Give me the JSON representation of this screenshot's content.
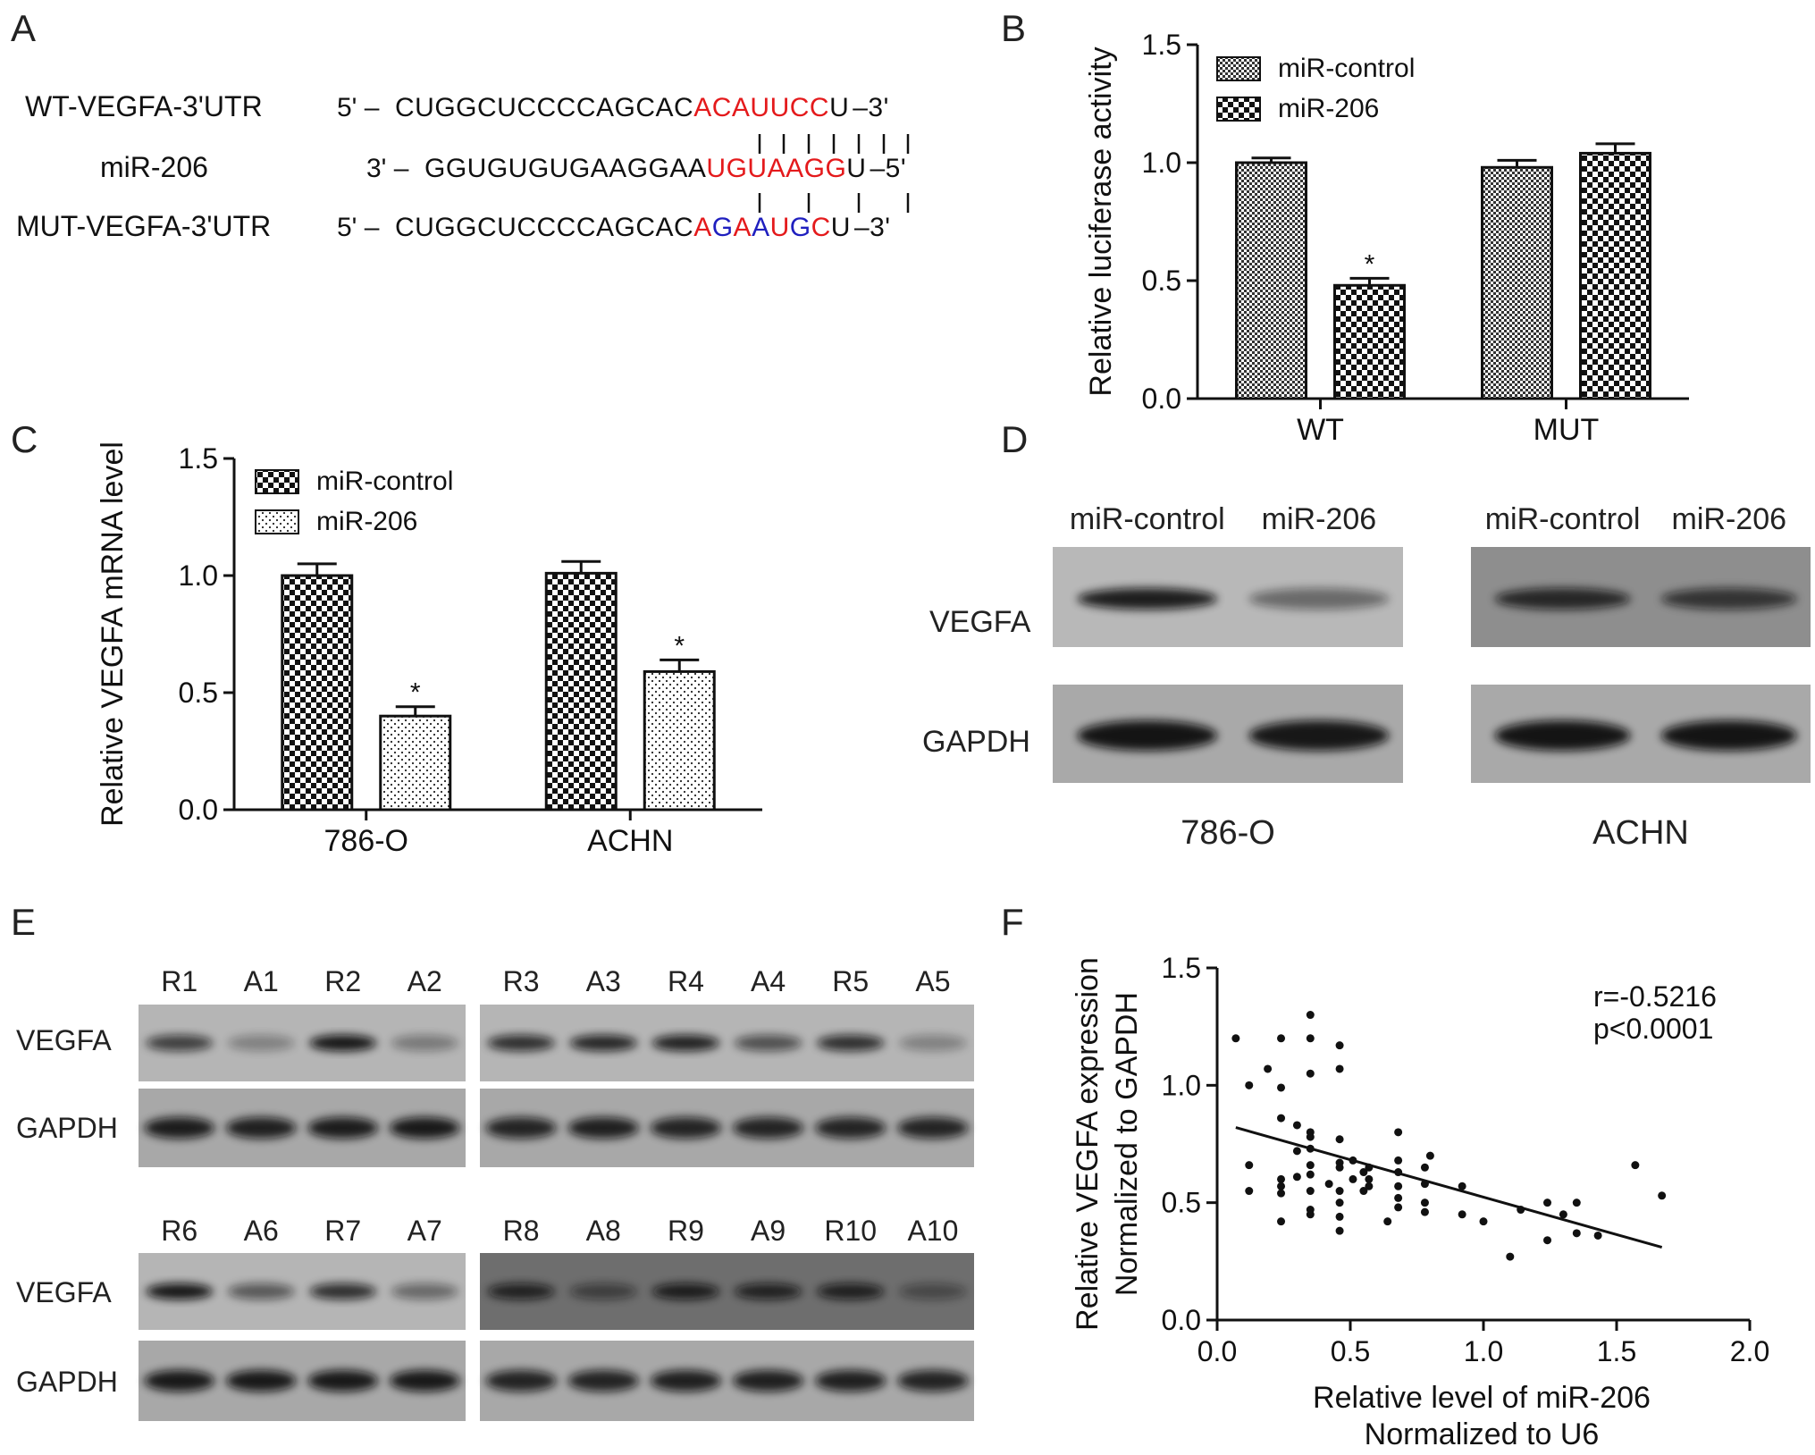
{
  "figure": {
    "panel_letters": {
      "a": "A",
      "b": "B",
      "c": "C",
      "d": "D",
      "e": "E",
      "f": "F"
    }
  },
  "panel_a": {
    "rows": [
      {
        "label": "WT-VEGFA-3'UTR",
        "prefix": "5' –",
        "seq": "CUGGCUCCCCAGCAC",
        "site": "ACAUUCC",
        "site_colors": [
          "red",
          "red",
          "red",
          "red",
          "red",
          "red",
          "red"
        ],
        "tail": "U",
        "suffix": "–3'"
      },
      {
        "label": "miR-206",
        "prefix": "3' –",
        "seq": "GGUGUGUGAAGGAA",
        "site": "UGUAAGG",
        "site_colors": [
          "red",
          "red",
          "red",
          "red",
          "red",
          "red",
          "red"
        ],
        "tail": "U",
        "suffix": "–5'"
      },
      {
        "label": "MUT-VEGFA-3'UTR",
        "prefix": "5' –",
        "seq": "CUGGCUCCCCAGCAC",
        "site": "AGAAUGC",
        "site_colors": [
          "red",
          "blue",
          "red",
          "blue",
          "red",
          "blue",
          "red"
        ],
        "tail": "U",
        "suffix": "–3'"
      }
    ],
    "colors": {
      "match": "#e41a1c",
      "mutation": "#1f1fbf"
    }
  },
  "chart_data": [
    {
      "panel": "B",
      "type": "bar",
      "ylabel": "Relative luciferase activity",
      "ylim": [
        0,
        1.5
      ],
      "yticks": [
        "0.0",
        "0.5",
        "1.0",
        "1.5"
      ],
      "categories": [
        "WT",
        "MUT"
      ],
      "series": [
        {
          "name": "miR-control",
          "values": [
            1.0,
            0.98
          ],
          "errors": [
            0.02,
            0.03
          ],
          "pattern": "fine-check"
        },
        {
          "name": "miR-206",
          "values": [
            0.48,
            1.04
          ],
          "errors": [
            0.03,
            0.04
          ],
          "pattern": "checker"
        }
      ],
      "significance": [
        {
          "category": 0,
          "series": 1,
          "label": "*"
        }
      ],
      "legend": "top-left"
    },
    {
      "panel": "C",
      "type": "bar",
      "ylabel": "Relative VEGFA mRNA level",
      "ylim": [
        0,
        1.5
      ],
      "yticks": [
        "0.0",
        "0.5",
        "1.0",
        "1.5"
      ],
      "categories": [
        "786-O",
        "ACHN"
      ],
      "series": [
        {
          "name": "miR-control",
          "values": [
            1.0,
            1.01
          ],
          "errors": [
            0.05,
            0.05
          ],
          "pattern": "checker"
        },
        {
          "name": "miR-206",
          "values": [
            0.4,
            0.59
          ],
          "errors": [
            0.04,
            0.05
          ],
          "pattern": "dots"
        }
      ],
      "significance": [
        {
          "category": 0,
          "series": 1,
          "label": "*"
        },
        {
          "category": 1,
          "series": 1,
          "label": "*"
        }
      ],
      "legend": "top-left"
    },
    {
      "panel": "F",
      "type": "scatter",
      "xlabel": [
        "Relative level of miR-206",
        "Normalized to U6"
      ],
      "ylabel": [
        "Relative VEGFA expression",
        "Normalized to GAPDH"
      ],
      "xlim": [
        0,
        2.0
      ],
      "ylim": [
        0,
        1.5
      ],
      "xticks": [
        "0.0",
        "0.5",
        "1.0",
        "1.5",
        "2.0"
      ],
      "yticks": [
        "0.0",
        "0.5",
        "1.0",
        "1.5"
      ],
      "annotation": [
        "r=-0.5216",
        "p<0.0001"
      ],
      "fit": {
        "x": [
          0.07,
          1.67
        ],
        "y": [
          0.82,
          0.31
        ]
      },
      "points": [
        [
          0.07,
          1.2
        ],
        [
          0.12,
          1.0
        ],
        [
          0.12,
          0.66
        ],
        [
          0.12,
          0.55
        ],
        [
          0.19,
          1.07
        ],
        [
          0.24,
          1.2
        ],
        [
          0.24,
          0.99
        ],
        [
          0.24,
          0.86
        ],
        [
          0.24,
          0.6
        ],
        [
          0.24,
          0.57
        ],
        [
          0.24,
          0.54
        ],
        [
          0.24,
          0.42
        ],
        [
          0.3,
          0.83
        ],
        [
          0.3,
          0.72
        ],
        [
          0.3,
          0.61
        ],
        [
          0.35,
          1.3
        ],
        [
          0.35,
          1.2
        ],
        [
          0.35,
          1.05
        ],
        [
          0.35,
          0.8
        ],
        [
          0.35,
          0.78
        ],
        [
          0.35,
          0.73
        ],
        [
          0.35,
          0.66
        ],
        [
          0.35,
          0.62
        ],
        [
          0.35,
          0.55
        ],
        [
          0.35,
          0.47
        ],
        [
          0.35,
          0.45
        ],
        [
          0.42,
          0.58
        ],
        [
          0.46,
          1.17
        ],
        [
          0.46,
          1.07
        ],
        [
          0.46,
          0.77
        ],
        [
          0.46,
          0.67
        ],
        [
          0.46,
          0.65
        ],
        [
          0.46,
          0.55
        ],
        [
          0.46,
          0.5
        ],
        [
          0.46,
          0.44
        ],
        [
          0.46,
          0.38
        ],
        [
          0.51,
          0.68
        ],
        [
          0.51,
          0.6
        ],
        [
          0.55,
          0.63
        ],
        [
          0.55,
          0.55
        ],
        [
          0.57,
          0.65
        ],
        [
          0.57,
          0.6
        ],
        [
          0.57,
          0.57
        ],
        [
          0.64,
          0.42
        ],
        [
          0.68,
          0.8
        ],
        [
          0.68,
          0.68
        ],
        [
          0.68,
          0.63
        ],
        [
          0.68,
          0.57
        ],
        [
          0.68,
          0.52
        ],
        [
          0.68,
          0.48
        ],
        [
          0.78,
          0.65
        ],
        [
          0.78,
          0.58
        ],
        [
          0.78,
          0.5
        ],
        [
          0.78,
          0.46
        ],
        [
          0.8,
          0.7
        ],
        [
          0.92,
          0.57
        ],
        [
          0.92,
          0.45
        ],
        [
          1.0,
          0.42
        ],
        [
          1.1,
          0.27
        ],
        [
          1.14,
          0.47
        ],
        [
          1.24,
          0.5
        ],
        [
          1.24,
          0.34
        ],
        [
          1.3,
          0.45
        ],
        [
          1.35,
          0.5
        ],
        [
          1.35,
          0.37
        ],
        [
          1.43,
          0.36
        ],
        [
          1.57,
          0.66
        ],
        [
          1.67,
          0.53
        ]
      ]
    }
  ],
  "panel_d": {
    "blots": [
      {
        "cell_line": "786-O",
        "lanes": [
          "miR-control",
          "miR-206"
        ],
        "vegfa": [
          0.9,
          0.45
        ],
        "gapdh": [
          0.95,
          0.93
        ]
      },
      {
        "cell_line": "ACHN",
        "lanes": [
          "miR-control",
          "miR-206"
        ],
        "vegfa": [
          0.8,
          0.7
        ],
        "gapdh": [
          0.95,
          0.95
        ]
      }
    ],
    "row_labels": {
      "vegfa": "VEGFA",
      "gapdh": "GAPDH"
    }
  },
  "panel_e": {
    "row_labels": {
      "vegfa": "VEGFA",
      "gapdh": "GAPDH"
    },
    "groups": [
      {
        "lanes": [
          "R1",
          "A1",
          "R2",
          "A2"
        ],
        "vegfa": [
          0.7,
          0.3,
          0.95,
          0.35
        ],
        "gapdh": [
          0.9,
          0.88,
          0.9,
          0.92
        ]
      },
      {
        "lanes": [
          "R3",
          "A3",
          "R4",
          "A4",
          "R5",
          "A5"
        ],
        "vegfa": [
          0.8,
          0.85,
          0.88,
          0.6,
          0.8,
          0.3
        ],
        "gapdh": [
          0.85,
          0.88,
          0.85,
          0.85,
          0.85,
          0.85
        ]
      },
      {
        "lanes": [
          "R6",
          "A6",
          "R7",
          "A7"
        ],
        "vegfa": [
          0.95,
          0.55,
          0.8,
          0.45
        ],
        "gapdh": [
          0.92,
          0.92,
          0.92,
          0.92
        ]
      },
      {
        "lanes": [
          "R8",
          "A8",
          "R9",
          "A9",
          "R10",
          "A10"
        ],
        "vegfa": [
          0.8,
          0.5,
          0.85,
          0.8,
          0.82,
          0.4
        ],
        "gapdh": [
          0.85,
          0.85,
          0.88,
          0.88,
          0.88,
          0.85
        ]
      }
    ]
  }
}
